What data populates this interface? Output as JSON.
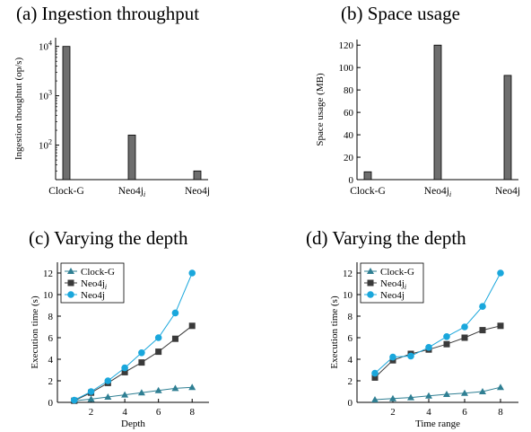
{
  "chart_data": [
    {
      "id": "a",
      "type": "bar",
      "title": "(a) Ingestion throughput",
      "ylabel": "Ingestion thoughtut (op/s)",
      "xlabel": "",
      "yscale": "log",
      "ylim": [
        20,
        15000
      ],
      "categories": [
        {
          "base": "Clock-G",
          "sub": ""
        },
        {
          "base": "Neo4j",
          "sub": "i"
        },
        {
          "base": "Neo4j",
          "sub": ""
        }
      ],
      "values": [
        10000,
        160,
        30
      ],
      "yticks": [
        {
          "base": "10",
          "exp": "2",
          "value": 100
        },
        {
          "base": "10",
          "exp": "3",
          "value": 1000
        },
        {
          "base": "10",
          "exp": "4",
          "value": 10000
        }
      ],
      "bar_color": "#6e6e6e",
      "grid": false
    },
    {
      "id": "b",
      "type": "bar",
      "title": "(b) Space usage",
      "ylabel": "Space usage (MB)",
      "xlabel": "",
      "yscale": "linear",
      "ylim": [
        0,
        125
      ],
      "categories": [
        {
          "base": "Clock-G",
          "sub": ""
        },
        {
          "base": "Neo4j",
          "sub": "i"
        },
        {
          "base": "Neo4j",
          "sub": ""
        }
      ],
      "values": [
        7,
        120,
        93
      ],
      "yticks": [
        0,
        20,
        40,
        60,
        80,
        100,
        120
      ],
      "bar_color": "#6e6e6e",
      "grid": false
    },
    {
      "id": "c",
      "type": "line",
      "title": "(c) Varying the depth",
      "xlabel": "Depth",
      "ylabel": "Execution time (s)",
      "xlim": [
        0,
        9
      ],
      "ylim": [
        0,
        13
      ],
      "xticks": [
        2,
        4,
        6,
        8
      ],
      "yticks": [
        0,
        2,
        4,
        6,
        8,
        10,
        12
      ],
      "x": [
        1,
        2,
        3,
        4,
        5,
        6,
        7,
        8
      ],
      "series": [
        {
          "name": "Clock-G",
          "name_sub": "",
          "marker": "triangle",
          "color": "#2f7f93",
          "values": [
            0.15,
            0.3,
            0.5,
            0.7,
            0.9,
            1.1,
            1.3,
            1.4
          ]
        },
        {
          "name": "Neo4j",
          "name_sub": "i",
          "marker": "square",
          "color": "#3a3a3a",
          "values": [
            0.15,
            0.9,
            1.8,
            2.8,
            3.7,
            4.7,
            5.9,
            7.1
          ]
        },
        {
          "name": "Neo4j",
          "name_sub": "",
          "marker": "circle",
          "color": "#1aa7dc",
          "values": [
            0.2,
            1.0,
            2.0,
            3.2,
            4.6,
            6.0,
            8.3,
            12.0
          ]
        }
      ],
      "legend": "top-left",
      "grid": false
    },
    {
      "id": "d",
      "type": "line",
      "title": "(d) Varying the depth",
      "xlabel": "Time range",
      "ylabel": "Execution time (s)",
      "xlim": [
        0,
        9
      ],
      "ylim": [
        0,
        13
      ],
      "xticks": [
        2,
        4,
        6,
        8
      ],
      "yticks": [
        0,
        2,
        4,
        6,
        8,
        10,
        12
      ],
      "x": [
        1,
        2,
        3,
        4,
        5,
        6,
        7,
        8
      ],
      "series": [
        {
          "name": "Clock-G",
          "name_sub": "",
          "marker": "triangle",
          "color": "#2f7f93",
          "values": [
            0.25,
            0.35,
            0.45,
            0.6,
            0.75,
            0.85,
            1.0,
            1.4
          ]
        },
        {
          "name": "Neo4j",
          "name_sub": "i",
          "marker": "square",
          "color": "#3a3a3a",
          "values": [
            2.3,
            3.9,
            4.5,
            4.9,
            5.4,
            6.0,
            6.7,
            7.1
          ]
        },
        {
          "name": "Neo4j",
          "name_sub": "",
          "marker": "circle",
          "color": "#1aa7dc",
          "values": [
            2.7,
            4.2,
            4.3,
            5.1,
            6.1,
            7.0,
            8.9,
            12.0
          ]
        }
      ],
      "legend": "top-left",
      "grid": false
    }
  ]
}
